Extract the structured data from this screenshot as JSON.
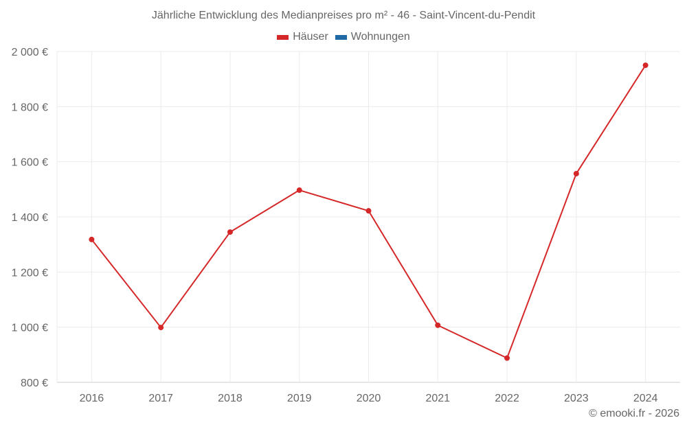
{
  "chart": {
    "title": "Jährliche Entwicklung des Medianpreises pro m² - 46 - Saint-Vincent-du-Pendit",
    "legend": [
      {
        "label": "Häuser",
        "color": "#d62728"
      },
      {
        "label": "Wohnungen",
        "color": "#1f6aa5"
      }
    ],
    "credit": "© emooki.fr - 2026"
  },
  "chart_data": {
    "type": "line",
    "title": "Jährliche Entwicklung des Medianpreises pro m² - 46 - Saint-Vincent-du-Pendit",
    "xlabel": "",
    "ylabel": "",
    "categories": [
      "2016",
      "2017",
      "2018",
      "2019",
      "2020",
      "2021",
      "2022",
      "2023",
      "2024"
    ],
    "series": [
      {
        "name": "Häuser",
        "color": "#d62728",
        "values": [
          1318,
          999,
          1345,
          1497,
          1422,
          1007,
          888,
          1557,
          1950
        ]
      },
      {
        "name": "Wohnungen",
        "color": "#1f6aa5",
        "values": [
          null,
          null,
          null,
          null,
          null,
          null,
          null,
          null,
          null
        ]
      }
    ],
    "ylim": [
      800,
      2000
    ],
    "yticks": [
      800,
      1000,
      1200,
      1400,
      1600,
      1800,
      2000
    ],
    "ytick_labels": [
      "800 €",
      "1 000 €",
      "1 200 €",
      "1 400 €",
      "1 600 €",
      "1 800 €",
      "2 000 €"
    ],
    "grid": true,
    "legend_position": "top"
  }
}
